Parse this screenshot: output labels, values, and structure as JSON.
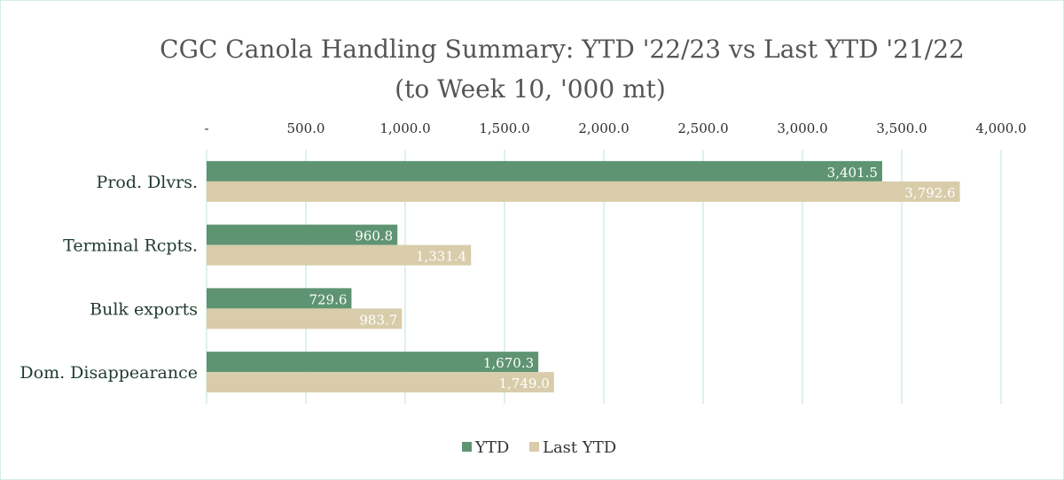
{
  "chart_data": {
    "type": "bar",
    "orientation": "horizontal",
    "title": "CGC Canola Handling Summary: YTD '22/23 vs Last YTD '21/22",
    "subtitle": "(to Week 10, '000 mt)",
    "categories": [
      "Prod. Dlvrs.",
      "Terminal Rcpts.",
      "Bulk exports",
      "Dom. Disappearance"
    ],
    "series": [
      {
        "name": "YTD",
        "color": "#5e9472",
        "values": [
          3401.5,
          960.8,
          729.6,
          1670.3
        ],
        "labels": [
          "3,401.5",
          "960.8",
          "729.6",
          "1,670.3"
        ]
      },
      {
        "name": "Last YTD",
        "color": "#d8ccaa",
        "values": [
          3792.6,
          1331.4,
          983.7,
          1749.0
        ],
        "labels": [
          "3,792.6",
          "1,331.4",
          "983.7",
          "1,749.0"
        ]
      }
    ],
    "xlim": [
      0,
      4000
    ],
    "ticks": [
      0,
      500,
      1000,
      1500,
      2000,
      2500,
      3000,
      3500,
      4000
    ],
    "tick_labels": [
      "-",
      "500.0",
      "1,000.0",
      "1,500.0",
      "2,000.0",
      "2,500.0",
      "3,000.0",
      "3,500.0",
      "4,000.0"
    ],
    "axis_position": "top",
    "grid": true,
    "grid_color": "#d4eee4",
    "legend": "bottom"
  }
}
